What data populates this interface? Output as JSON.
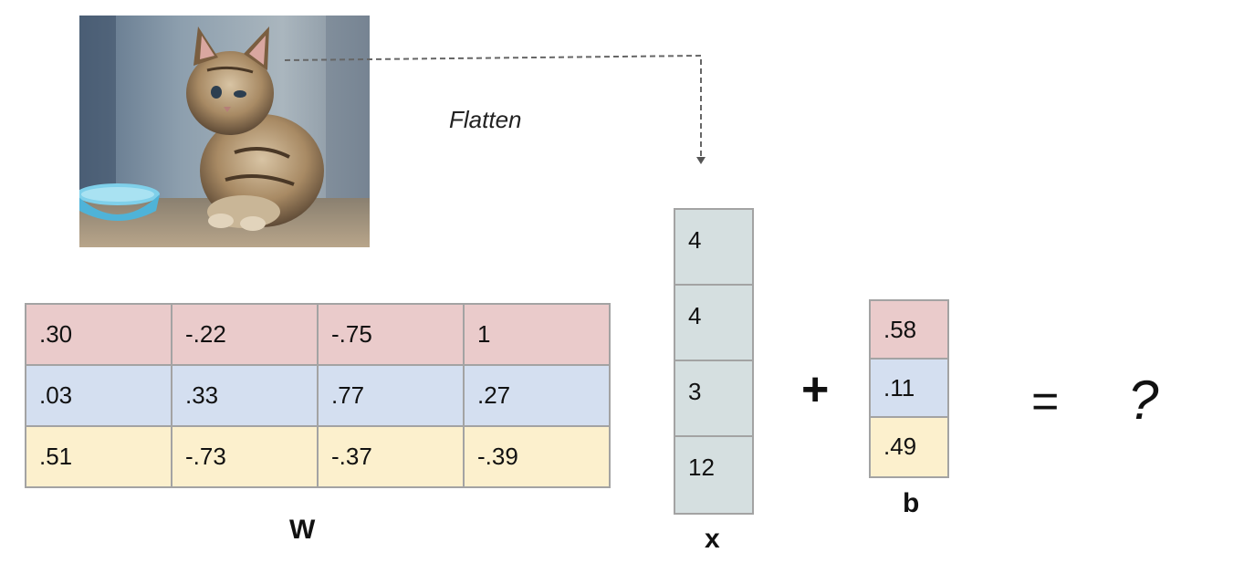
{
  "flatten_label": "Flatten",
  "matrix_w": {
    "label": "W",
    "rows": [
      {
        "color": "#eacbcb",
        "cells": [
          ".30",
          "-.22",
          "-.75",
          "1"
        ]
      },
      {
        "color": "#d4dff0",
        "cells": [
          ".03",
          ".33",
          ".77",
          ".27"
        ]
      },
      {
        "color": "#fcf0cd",
        "cells": [
          ".51",
          "-.73",
          "-.37",
          "-.39"
        ]
      }
    ]
  },
  "vector_x": {
    "label": "x",
    "color": "#d5dfe0",
    "values": [
      "4",
      "4",
      "3",
      "12"
    ]
  },
  "vector_b": {
    "label": "b",
    "values": [
      ".58",
      ".11",
      ".49"
    ]
  },
  "operators": {
    "plus": "+",
    "equals": "=",
    "result": "?"
  }
}
